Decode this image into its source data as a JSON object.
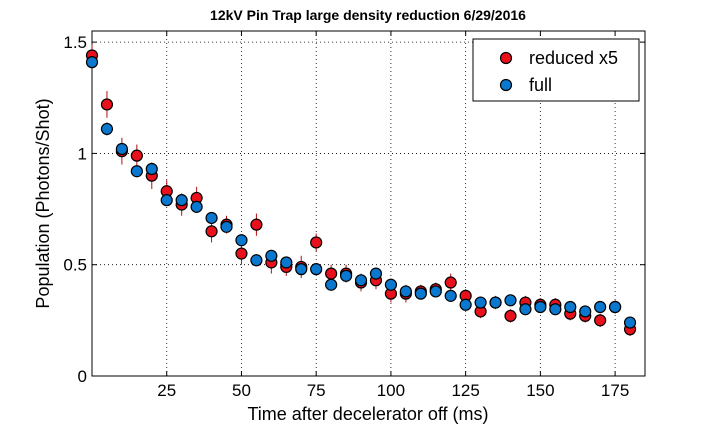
{
  "chart_data": {
    "type": "scatter",
    "title": "12kV Pin Trap large density reduction  6/29/2016",
    "xlabel": "Time after decelerator off (ms)",
    "ylabel": "Population (Photons/Shot)",
    "xlim": [
      0,
      185
    ],
    "ylim": [
      0,
      1.55
    ],
    "x_ticks": [
      25,
      50,
      75,
      100,
      125,
      150,
      175
    ],
    "y_ticks": [
      0,
      0.5,
      1,
      1.5
    ],
    "y_tick_labels": [
      "0",
      "0.5",
      "1",
      "1.5"
    ],
    "grid": true,
    "legend_position": "top-right",
    "series": [
      {
        "name": "reduced x5",
        "color": "#e8101a",
        "error_color": "#b01010",
        "points": [
          {
            "x": 0,
            "y": 1.44,
            "err": 0.05
          },
          {
            "x": 5,
            "y": 1.22,
            "err": 0.06
          },
          {
            "x": 10,
            "y": 1.01,
            "err": 0.06
          },
          {
            "x": 15,
            "y": 0.99,
            "err": 0.05
          },
          {
            "x": 20,
            "y": 0.9,
            "err": 0.06
          },
          {
            "x": 25,
            "y": 0.83,
            "err": 0.05
          },
          {
            "x": 30,
            "y": 0.77,
            "err": 0.05
          },
          {
            "x": 35,
            "y": 0.8,
            "err": 0.05
          },
          {
            "x": 40,
            "y": 0.65,
            "err": 0.05
          },
          {
            "x": 45,
            "y": 0.68,
            "err": 0.04
          },
          {
            "x": 50,
            "y": 0.55,
            "err": 0.05
          },
          {
            "x": 55,
            "y": 0.68,
            "err": 0.05
          },
          {
            "x": 60,
            "y": 0.51,
            "err": 0.05
          },
          {
            "x": 65,
            "y": 0.49,
            "err": 0.04
          },
          {
            "x": 70,
            "y": 0.49,
            "err": 0.05
          },
          {
            "x": 75,
            "y": 0.6,
            "err": 0.04
          },
          {
            "x": 80,
            "y": 0.46,
            "err": 0.04
          },
          {
            "x": 85,
            "y": 0.46,
            "err": 0.04
          },
          {
            "x": 90,
            "y": 0.42,
            "err": 0.04
          },
          {
            "x": 95,
            "y": 0.43,
            "err": 0.04
          },
          {
            "x": 100,
            "y": 0.37,
            "err": 0.04
          },
          {
            "x": 105,
            "y": 0.37,
            "err": 0.04
          },
          {
            "x": 110,
            "y": 0.38,
            "err": 0.03
          },
          {
            "x": 115,
            "y": 0.39,
            "err": 0.03
          },
          {
            "x": 120,
            "y": 0.42,
            "err": 0.04
          },
          {
            "x": 125,
            "y": 0.36,
            "err": 0.03
          },
          {
            "x": 130,
            "y": 0.29,
            "err": 0.03
          },
          {
            "x": 135,
            "y": 0.33,
            "err": 0.03
          },
          {
            "x": 140,
            "y": 0.27,
            "err": 0.03
          },
          {
            "x": 145,
            "y": 0.33,
            "err": 0.03
          },
          {
            "x": 150,
            "y": 0.32,
            "err": 0.03
          },
          {
            "x": 155,
            "y": 0.32,
            "err": 0.03
          },
          {
            "x": 160,
            "y": 0.28,
            "err": 0.03
          },
          {
            "x": 165,
            "y": 0.27,
            "err": 0.03
          },
          {
            "x": 170,
            "y": 0.25,
            "err": 0.03
          },
          {
            "x": 175,
            "y": 0.31,
            "err": 0.03
          },
          {
            "x": 180,
            "y": 0.21,
            "err": 0.03
          }
        ]
      },
      {
        "name": "full",
        "color": "#0b78d0",
        "error_color": "#1a4fa0",
        "points": [
          {
            "x": 0,
            "y": 1.41,
            "err": 0.02
          },
          {
            "x": 5,
            "y": 1.11,
            "err": 0.03
          },
          {
            "x": 10,
            "y": 1.02,
            "err": 0.02
          },
          {
            "x": 15,
            "y": 0.92,
            "err": 0.02
          },
          {
            "x": 20,
            "y": 0.93,
            "err": 0.02
          },
          {
            "x": 25,
            "y": 0.79,
            "err": 0.02
          },
          {
            "x": 30,
            "y": 0.79,
            "err": 0.02
          },
          {
            "x": 35,
            "y": 0.76,
            "err": 0.02
          },
          {
            "x": 40,
            "y": 0.71,
            "err": 0.02
          },
          {
            "x": 45,
            "y": 0.67,
            "err": 0.02
          },
          {
            "x": 50,
            "y": 0.61,
            "err": 0.02
          },
          {
            "x": 55,
            "y": 0.52,
            "err": 0.02
          },
          {
            "x": 60,
            "y": 0.54,
            "err": 0.02
          },
          {
            "x": 65,
            "y": 0.51,
            "err": 0.02
          },
          {
            "x": 70,
            "y": 0.48,
            "err": 0.02
          },
          {
            "x": 75,
            "y": 0.48,
            "err": 0.02
          },
          {
            "x": 80,
            "y": 0.41,
            "err": 0.02
          },
          {
            "x": 85,
            "y": 0.45,
            "err": 0.02
          },
          {
            "x": 90,
            "y": 0.43,
            "err": 0.02
          },
          {
            "x": 95,
            "y": 0.46,
            "err": 0.02
          },
          {
            "x": 100,
            "y": 0.41,
            "err": 0.02
          },
          {
            "x": 105,
            "y": 0.38,
            "err": 0.02
          },
          {
            "x": 110,
            "y": 0.37,
            "err": 0.02
          },
          {
            "x": 115,
            "y": 0.38,
            "err": 0.02
          },
          {
            "x": 120,
            "y": 0.36,
            "err": 0.02
          },
          {
            "x": 125,
            "y": 0.32,
            "err": 0.02
          },
          {
            "x": 130,
            "y": 0.33,
            "err": 0.02
          },
          {
            "x": 135,
            "y": 0.33,
            "err": 0.02
          },
          {
            "x": 140,
            "y": 0.34,
            "err": 0.02
          },
          {
            "x": 145,
            "y": 0.3,
            "err": 0.02
          },
          {
            "x": 150,
            "y": 0.31,
            "err": 0.02
          },
          {
            "x": 155,
            "y": 0.3,
            "err": 0.02
          },
          {
            "x": 160,
            "y": 0.31,
            "err": 0.02
          },
          {
            "x": 165,
            "y": 0.29,
            "err": 0.02
          },
          {
            "x": 170,
            "y": 0.31,
            "err": 0.02
          },
          {
            "x": 175,
            "y": 0.31,
            "err": 0.02
          },
          {
            "x": 180,
            "y": 0.24,
            "err": 0.02
          }
        ]
      }
    ]
  }
}
